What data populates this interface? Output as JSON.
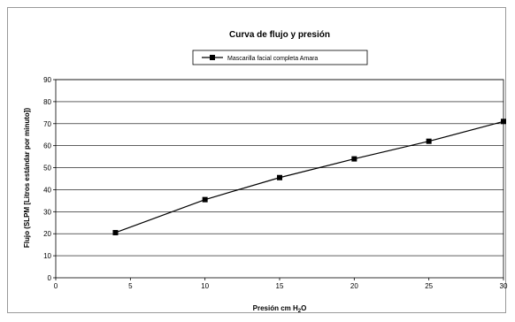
{
  "chart_data": {
    "type": "line",
    "title": "Curva de flujo y presión",
    "xlabel": {
      "main": "Presión cm H",
      "sub": "2",
      "tail": "O"
    },
    "ylabel": "Flujo (SLPM [Litros estándar por minuto])",
    "xlim": [
      0,
      30
    ],
    "ylim": [
      0,
      90
    ],
    "xticks": [
      0,
      5,
      10,
      15,
      20,
      25,
      30
    ],
    "yticks": [
      0,
      10,
      20,
      30,
      40,
      50,
      60,
      70,
      80,
      90
    ],
    "grid": true,
    "legend_position": "top-center",
    "series": [
      {
        "name": "Mascarilla facial completa Amara",
        "color": "#000000",
        "marker": "square",
        "x": [
          4,
          10,
          15,
          20,
          25,
          30
        ],
        "y": [
          20.5,
          35.5,
          45.5,
          54,
          62,
          71
        ]
      }
    ]
  }
}
